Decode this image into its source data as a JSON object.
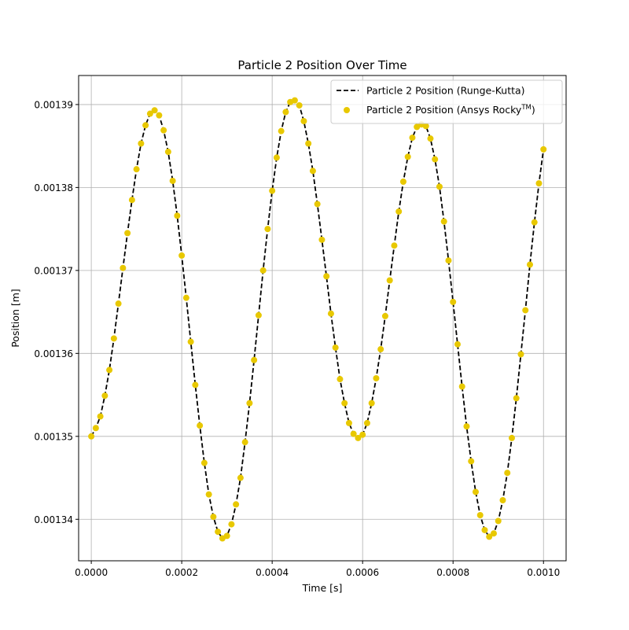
{
  "chart_data": {
    "type": "line",
    "title": "Particle 2 Position Over Time",
    "xlabel": "Time [s]",
    "ylabel": "Position [m]",
    "xlim": [
      -2.8e-05,
      0.00105
    ],
    "ylim": [
      0.001335,
      0.0013935
    ],
    "grid": true,
    "legend_position": "top-right",
    "x_ticks": [
      "0.0000",
      "0.0002",
      "0.0004",
      "0.0006",
      "0.0008",
      "0.0010"
    ],
    "x_tick_values": [
      0,
      0.0002,
      0.0004,
      0.0006,
      0.0008,
      0.001
    ],
    "y_ticks": [
      "0.00134",
      "0.00135",
      "0.00136",
      "0.00137",
      "0.00138",
      "0.00139"
    ],
    "y_tick_values": [
      0.00134,
      0.00135,
      0.00136,
      0.00137,
      0.00138,
      0.00139
    ],
    "series": [
      {
        "name": "Particle 2 Position (Runge-Kutta)",
        "style": "dashed-line",
        "color": "#000000",
        "x": [
          0,
          1e-05,
          2e-05,
          3e-05,
          4e-05,
          5e-05,
          6e-05,
          7e-05,
          8e-05,
          9e-05,
          0.0001,
          0.00011,
          0.00012,
          0.00013,
          0.00014,
          0.00015,
          0.00016,
          0.00017,
          0.00018,
          0.00019,
          0.0002,
          0.00021,
          0.00022,
          0.00023,
          0.00024,
          0.00025,
          0.00026,
          0.00027,
          0.00028,
          0.00029,
          0.0003,
          0.00031,
          0.00032,
          0.00033,
          0.00034,
          0.00035,
          0.00036,
          0.00037,
          0.00038,
          0.00039,
          0.0004,
          0.00041,
          0.00042,
          0.00043,
          0.00044,
          0.00045,
          0.00046,
          0.00047,
          0.00048,
          0.00049,
          0.0005,
          0.00051,
          0.00052,
          0.00053,
          0.00054,
          0.00055,
          0.00056,
          0.00057,
          0.00058,
          0.00059,
          0.0006,
          0.00061,
          0.00062,
          0.00063,
          0.00064,
          0.00065,
          0.00066,
          0.00067,
          0.00068,
          0.00069,
          0.0007,
          0.00071,
          0.00072,
          0.00073,
          0.00074,
          0.00075,
          0.00076,
          0.00077,
          0.00078,
          0.00079,
          0.0008,
          0.00081,
          0.00082,
          0.00083,
          0.00084,
          0.00085,
          0.00086,
          0.00087,
          0.00088,
          0.00089,
          0.0009,
          0.00091,
          0.00092,
          0.00093,
          0.00094,
          0.00095,
          0.00096,
          0.00097,
          0.00098,
          0.00099,
          0.001
        ],
        "y": [
          0.00135,
          0.001351,
          0.0013524,
          0.0013549,
          0.001358,
          0.0013618,
          0.001366,
          0.0013703,
          0.0013745,
          0.0013785,
          0.0013822,
          0.0013853,
          0.0013875,
          0.0013889,
          0.0013893,
          0.0013887,
          0.0013869,
          0.0013843,
          0.0013808,
          0.0013766,
          0.0013718,
          0.0013667,
          0.0013614,
          0.0013562,
          0.0013513,
          0.0013468,
          0.001343,
          0.0013403,
          0.0013385,
          0.0013377,
          0.001338,
          0.0013394,
          0.0013418,
          0.001345,
          0.0013493,
          0.001354,
          0.0013592,
          0.0013646,
          0.00137,
          0.001375,
          0.0013796,
          0.0013836,
          0.0013868,
          0.0013891,
          0.0013903,
          0.0013905,
          0.0013899,
          0.001388,
          0.0013853,
          0.001382,
          0.001378,
          0.0013737,
          0.0013693,
          0.0013648,
          0.0013607,
          0.0013569,
          0.001354,
          0.0013516,
          0.0013503,
          0.0013498,
          0.0013502,
          0.0013516,
          0.001354,
          0.001357,
          0.0013605,
          0.0013645,
          0.0013688,
          0.001373,
          0.0013771,
          0.0013807,
          0.0013837,
          0.001386,
          0.0013873,
          0.0013876,
          0.0013874,
          0.0013859,
          0.0013834,
          0.0013801,
          0.0013759,
          0.0013712,
          0.0013662,
          0.0013611,
          0.001356,
          0.0013512,
          0.001347,
          0.0013433,
          0.0013405,
          0.0013387,
          0.0013379,
          0.0013383,
          0.0013398,
          0.0013423,
          0.0013456,
          0.0013498,
          0.0013546,
          0.0013599,
          0.0013652,
          0.0013707,
          0.0013758,
          0.0013805,
          0.0013846
        ]
      },
      {
        "name": "Particle 2 Position (Ansys Rocky",
        "name_superscript": "TM",
        "name_suffix": ")",
        "style": "markers",
        "color": "#e8c800",
        "x": [
          0,
          1e-05,
          2e-05,
          3e-05,
          4e-05,
          5e-05,
          6e-05,
          7e-05,
          8e-05,
          9e-05,
          0.0001,
          0.00011,
          0.00012,
          0.00013,
          0.00014,
          0.00015,
          0.00016,
          0.00017,
          0.00018,
          0.00019,
          0.0002,
          0.00021,
          0.00022,
          0.00023,
          0.00024,
          0.00025,
          0.00026,
          0.00027,
          0.00028,
          0.00029,
          0.0003,
          0.00031,
          0.00032,
          0.00033,
          0.00034,
          0.00035,
          0.00036,
          0.00037,
          0.00038,
          0.00039,
          0.0004,
          0.00041,
          0.00042,
          0.00043,
          0.00044,
          0.00045,
          0.00046,
          0.00047,
          0.00048,
          0.00049,
          0.0005,
          0.00051,
          0.00052,
          0.00053,
          0.00054,
          0.00055,
          0.00056,
          0.00057,
          0.00058,
          0.00059,
          0.0006,
          0.00061,
          0.00062,
          0.00063,
          0.00064,
          0.00065,
          0.00066,
          0.00067,
          0.00068,
          0.00069,
          0.0007,
          0.00071,
          0.00072,
          0.00073,
          0.00074,
          0.00075,
          0.00076,
          0.00077,
          0.00078,
          0.00079,
          0.0008,
          0.00081,
          0.00082,
          0.00083,
          0.00084,
          0.00085,
          0.00086,
          0.00087,
          0.00088,
          0.00089,
          0.0009,
          0.00091,
          0.00092,
          0.00093,
          0.00094,
          0.00095,
          0.00096,
          0.00097,
          0.00098,
          0.00099,
          0.001
        ],
        "y": [
          0.00135,
          0.001351,
          0.0013524,
          0.0013549,
          0.001358,
          0.0013618,
          0.001366,
          0.0013703,
          0.0013745,
          0.0013785,
          0.0013822,
          0.0013853,
          0.0013875,
          0.0013889,
          0.0013893,
          0.0013887,
          0.0013869,
          0.0013843,
          0.0013808,
          0.0013766,
          0.0013718,
          0.0013667,
          0.0013614,
          0.0013562,
          0.0013513,
          0.0013468,
          0.001343,
          0.0013403,
          0.0013385,
          0.0013377,
          0.001338,
          0.0013394,
          0.0013418,
          0.001345,
          0.0013493,
          0.001354,
          0.0013592,
          0.0013646,
          0.00137,
          0.001375,
          0.0013796,
          0.0013836,
          0.0013868,
          0.0013891,
          0.0013903,
          0.0013905,
          0.0013899,
          0.001388,
          0.0013853,
          0.001382,
          0.001378,
          0.0013737,
          0.0013693,
          0.0013648,
          0.0013607,
          0.0013569,
          0.001354,
          0.0013516,
          0.0013503,
          0.0013498,
          0.0013502,
          0.0013516,
          0.001354,
          0.001357,
          0.0013605,
          0.0013645,
          0.0013688,
          0.001373,
          0.0013771,
          0.0013807,
          0.0013837,
          0.001386,
          0.0013873,
          0.0013876,
          0.0013874,
          0.0013859,
          0.0013834,
          0.0013801,
          0.0013759,
          0.0013712,
          0.0013662,
          0.0013611,
          0.001356,
          0.0013512,
          0.001347,
          0.0013433,
          0.0013405,
          0.0013387,
          0.0013379,
          0.0013383,
          0.0013398,
          0.0013423,
          0.0013456,
          0.0013498,
          0.0013546,
          0.0013599,
          0.0013652,
          0.0013707,
          0.0013758,
          0.0013805,
          0.0013846
        ]
      }
    ]
  }
}
